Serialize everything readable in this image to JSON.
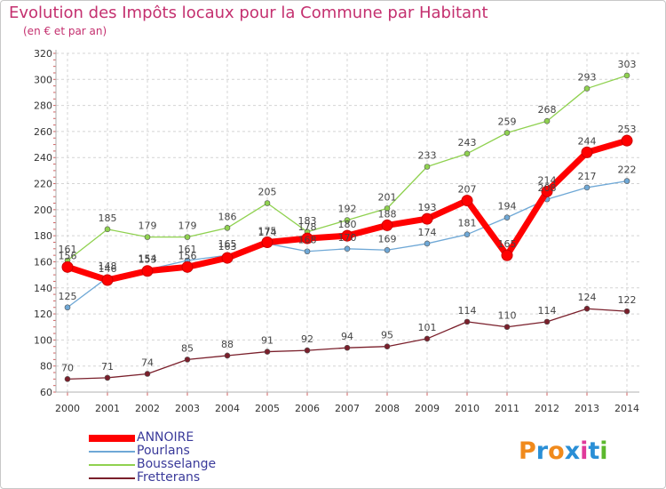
{
  "header": {
    "title": "Evolution des Impôts locaux pour la Commune par Habitant",
    "subtitle": "(en € et par an)"
  },
  "logo": {
    "text": "Proxiti",
    "letter_colors": [
      "#f08a1c",
      "#2a8fd6",
      "#f08a1c",
      "#2a8fd6",
      "#e03a9a",
      "#2a8fd6",
      "#5cb82e"
    ]
  },
  "chart_data": {
    "type": "line",
    "title": "Evolution des Impôts locaux pour la Commune par Habitant",
    "subtitle": "(en € et par an)",
    "xlabel": "",
    "ylabel": "",
    "x": [
      "2000",
      "2001",
      "2002",
      "2003",
      "2004",
      "2005",
      "2006",
      "2007",
      "2008",
      "2009",
      "2010",
      "2011",
      "2012",
      "2013",
      "2014"
    ],
    "ylim": [
      60,
      320
    ],
    "yticks": [
      60,
      80,
      100,
      120,
      140,
      160,
      180,
      200,
      220,
      240,
      260,
      280,
      300,
      320
    ],
    "grid": true,
    "legend": "bottom-left",
    "series": [
      {
        "name": "Bousselange",
        "color": "#8fd14f",
        "values": [
          161,
          185,
          179,
          179,
          186,
          205,
          183,
          192,
          201,
          233,
          243,
          259,
          268,
          293,
          303
        ],
        "labels": [
          "161",
          "185",
          "179",
          "179",
          "186",
          "205",
          "183",
          "192",
          "201",
          "233",
          "243",
          "259",
          "268",
          "293",
          "303"
        ]
      },
      {
        "name": "Pourlans",
        "color": "#6fa8d6",
        "values": [
          125,
          148,
          154,
          161,
          165,
          174,
          168,
          170,
          169,
          174,
          181,
          194,
          208,
          217,
          222
        ],
        "labels": [
          "125",
          "148",
          "154",
          "161",
          "165",
          "174",
          "168",
          "170",
          "169",
          "174",
          "181",
          "194",
          "208",
          "217",
          "222"
        ]
      },
      {
        "name": "Fretterans",
        "color": "#7a1f2b",
        "values": [
          70,
          71,
          74,
          85,
          88,
          91,
          92,
          94,
          95,
          101,
          114,
          110,
          114,
          124,
          122
        ],
        "labels": [
          "70",
          "71",
          "74",
          "85",
          "88",
          "91",
          "92",
          "94",
          "95",
          "101",
          "114",
          "110",
          "114",
          "124",
          "122"
        ]
      },
      {
        "name": "ANNOIRE",
        "color": "#ff0000",
        "values": [
          156,
          146,
          153,
          156,
          163,
          175,
          178,
          180,
          188,
          193,
          207,
          165,
          214,
          244,
          253
        ],
        "labels": [
          "156",
          "146",
          "153",
          "156",
          "163",
          "175",
          "178",
          "180",
          "188",
          "193",
          "207",
          "165",
          "214",
          "244",
          "253"
        ]
      }
    ],
    "legend_order": [
      "ANNOIRE",
      "Pourlans",
      "Bousselange",
      "Fretterans"
    ]
  }
}
